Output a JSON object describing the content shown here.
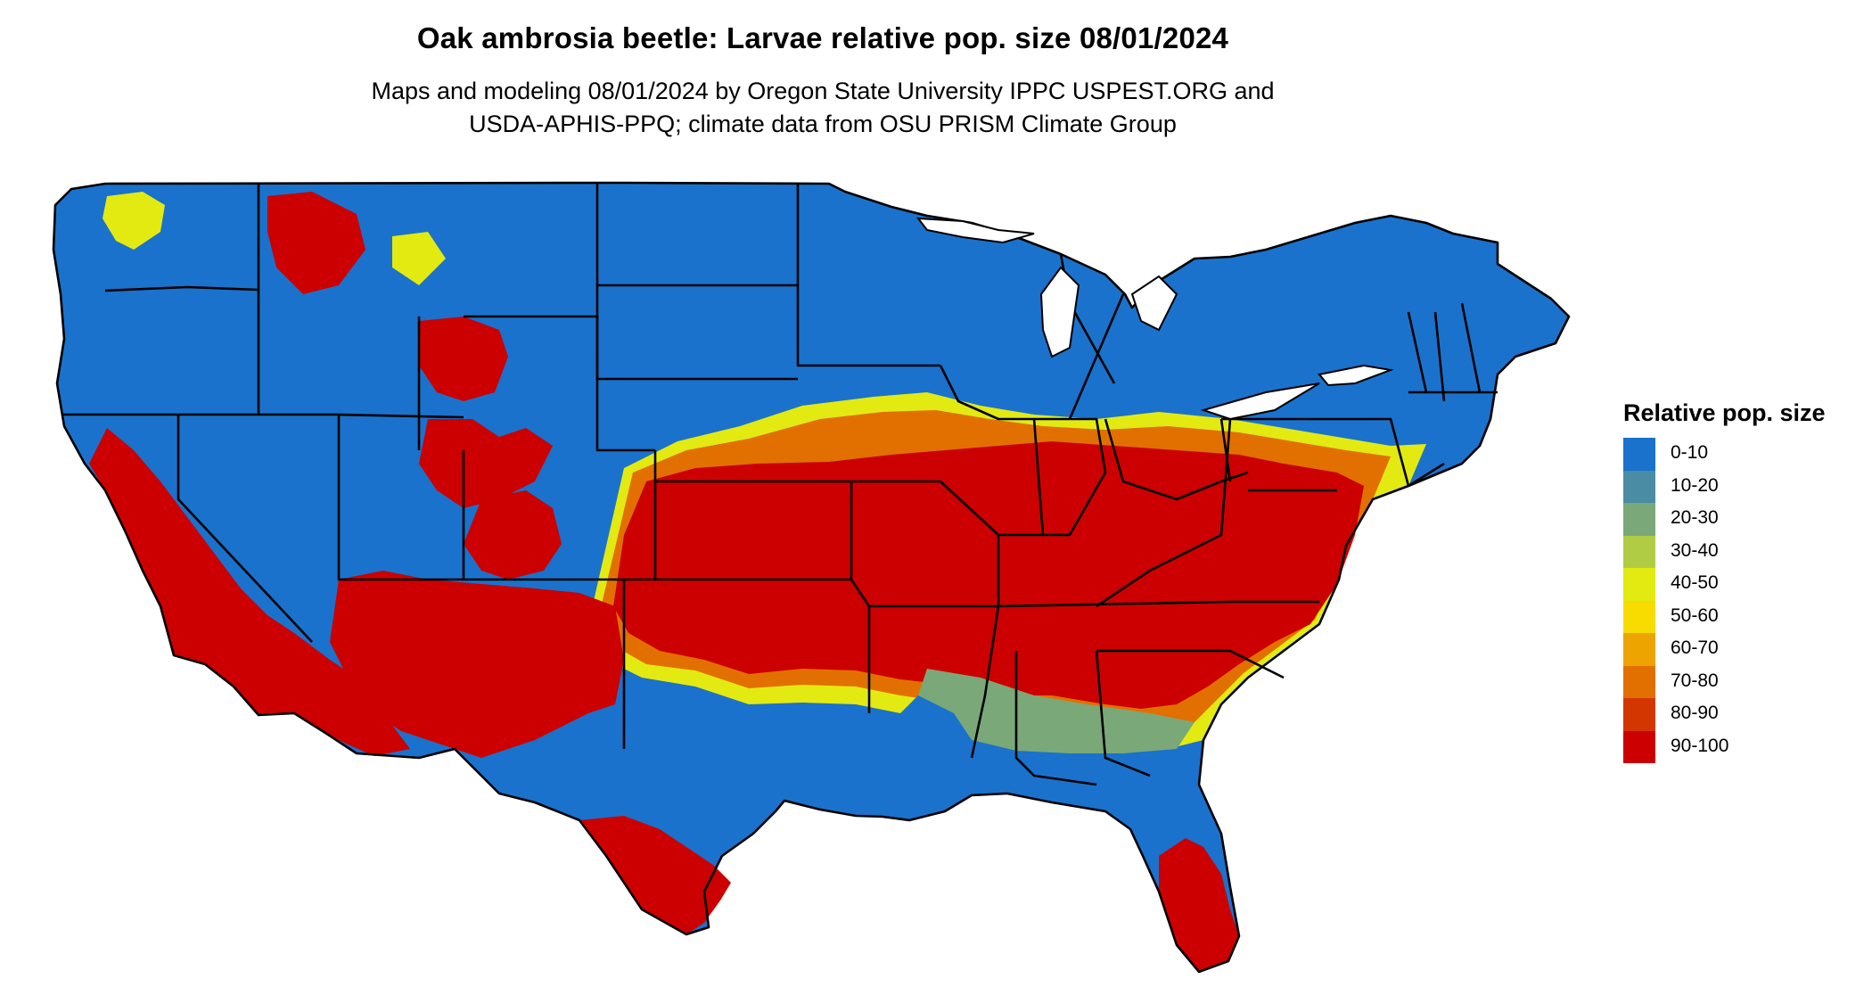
{
  "title": "Oak ambrosia beetle: Larvae relative pop. size 08/01/2024",
  "subtitle": {
    "line1": "Maps and modeling 08/01/2024 by Oregon State University IPPC USPEST.ORG and",
    "line2": "USDA-APHIS-PPQ; climate data from OSU PRISM Climate Group"
  },
  "legend": {
    "title": "Relative pop. size",
    "items": [
      {
        "label": "0-10",
        "color": "#1a72cc"
      },
      {
        "label": "10-20",
        "color": "#4a8ca3"
      },
      {
        "label": "20-30",
        "color": "#7aa878"
      },
      {
        "label": "30-40",
        "color": "#b0cc44"
      },
      {
        "label": "40-50",
        "color": "#e2ea12"
      },
      {
        "label": "50-60",
        "color": "#f8dc00"
      },
      {
        "label": "60-70",
        "color": "#eea400"
      },
      {
        "label": "70-80",
        "color": "#e27000"
      },
      {
        "label": "80-90",
        "color": "#d43600"
      },
      {
        "label": "90-100",
        "color": "#cc0000"
      }
    ]
  }
}
